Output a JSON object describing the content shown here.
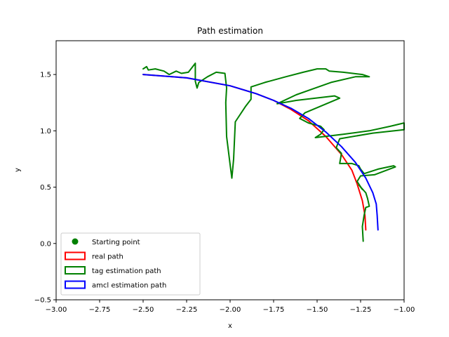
{
  "chart_data": {
    "type": "line",
    "title": "Path estimation",
    "xlabel": "x",
    "ylabel": "y",
    "xlim": [
      -3.0,
      -1.0
    ],
    "ylim": [
      -0.5,
      1.8
    ],
    "xticks": [
      -3.0,
      -2.75,
      -2.5,
      -2.25,
      -2.0,
      -1.75,
      -1.5,
      -1.25,
      -1.0
    ],
    "xtick_labels": [
      "−3.00",
      "−2.75",
      "−2.50",
      "−2.25",
      "−2.00",
      "−1.75",
      "−1.50",
      "−1.25",
      "−1.00"
    ],
    "yticks": [
      -0.5,
      0.0,
      0.5,
      1.0,
      1.5
    ],
    "ytick_labels": [
      "−0.5",
      "0.0",
      "0.5",
      "1.0",
      "1.5"
    ],
    "grid": false,
    "legend_position": "lower-left",
    "series": [
      {
        "name": "Starting point",
        "kind": "marker",
        "color": "#008000",
        "points": []
      },
      {
        "name": "real path",
        "kind": "line",
        "color": "#ff0000",
        "points": [
          [
            -2.5,
            1.5
          ],
          [
            -2.25,
            1.47
          ],
          [
            -2.0,
            1.4
          ],
          [
            -1.85,
            1.33
          ],
          [
            -1.75,
            1.27
          ],
          [
            -1.65,
            1.19
          ],
          [
            -1.55,
            1.09
          ],
          [
            -1.45,
            0.95
          ],
          [
            -1.36,
            0.79
          ],
          [
            -1.3,
            0.65
          ],
          [
            -1.27,
            0.53
          ],
          [
            -1.24,
            0.38
          ],
          [
            -1.225,
            0.25
          ],
          [
            -1.22,
            0.12
          ]
        ]
      },
      {
        "name": "tag estimation path",
        "kind": "line",
        "color": "#008000",
        "points": [
          [
            -2.5,
            1.55
          ],
          [
            -2.48,
            1.57
          ],
          [
            -2.47,
            1.54
          ],
          [
            -2.43,
            1.55
          ],
          [
            -2.38,
            1.53
          ],
          [
            -2.35,
            1.5
          ],
          [
            -2.31,
            1.53
          ],
          [
            -2.28,
            1.51
          ],
          [
            -2.24,
            1.52
          ],
          [
            -2.2,
            1.6
          ],
          [
            -2.2,
            1.44
          ],
          [
            -2.19,
            1.38
          ],
          [
            -2.18,
            1.43
          ],
          [
            -2.13,
            1.48
          ],
          [
            -2.08,
            1.52
          ],
          [
            -2.03,
            1.51
          ],
          [
            -2.02,
            1.38
          ],
          [
            -2.025,
            1.25
          ],
          [
            -2.02,
            0.95
          ],
          [
            -2.0,
            0.7
          ],
          [
            -1.99,
            0.58
          ],
          [
            -1.98,
            0.75
          ],
          [
            -1.97,
            1.08
          ],
          [
            -1.91,
            1.22
          ],
          [
            -1.88,
            1.28
          ],
          [
            -1.88,
            1.39
          ],
          [
            -1.8,
            1.43
          ],
          [
            -1.68,
            1.48
          ],
          [
            -1.58,
            1.52
          ],
          [
            -1.5,
            1.55
          ],
          [
            -1.45,
            1.55
          ],
          [
            -1.43,
            1.53
          ],
          [
            -1.35,
            1.52
          ],
          [
            -1.24,
            1.5
          ],
          [
            -1.2,
            1.48
          ],
          [
            -1.28,
            1.48
          ],
          [
            -1.42,
            1.43
          ],
          [
            -1.62,
            1.32
          ],
          [
            -1.73,
            1.24
          ],
          [
            -1.62,
            1.27
          ],
          [
            -1.4,
            1.31
          ],
          [
            -1.37,
            1.29
          ],
          [
            -1.57,
            1.16
          ],
          [
            -1.6,
            1.11
          ],
          [
            -1.55,
            1.07
          ],
          [
            -1.48,
            1.04
          ],
          [
            -1.46,
            1.01
          ],
          [
            -1.48,
            0.97
          ],
          [
            -1.51,
            0.94
          ],
          [
            -1.35,
            0.97
          ],
          [
            -1.2,
            1.0
          ],
          [
            -1.08,
            1.04
          ],
          [
            -1.0,
            1.07
          ],
          [
            -1.0,
            1.01
          ],
          [
            -1.18,
            0.98
          ],
          [
            -1.37,
            0.93
          ],
          [
            -1.39,
            0.85
          ],
          [
            -1.36,
            0.8
          ],
          [
            -1.37,
            0.71
          ],
          [
            -1.3,
            0.71
          ],
          [
            -1.26,
            0.69
          ],
          [
            -1.25,
            0.66
          ],
          [
            -1.23,
            0.62
          ],
          [
            -1.15,
            0.66
          ],
          [
            -1.06,
            0.69
          ],
          [
            -1.05,
            0.68
          ],
          [
            -1.17,
            0.61
          ],
          [
            -1.25,
            0.6
          ],
          [
            -1.27,
            0.55
          ],
          [
            -1.24,
            0.48
          ],
          [
            -1.26,
            0.52
          ],
          [
            -1.22,
            0.45
          ],
          [
            -1.21,
            0.4
          ],
          [
            -1.2,
            0.33
          ],
          [
            -1.22,
            0.32
          ],
          [
            -1.23,
            0.25
          ],
          [
            -1.24,
            0.15
          ],
          [
            -1.235,
            0.02
          ]
        ]
      },
      {
        "name": "amcl estimation path",
        "kind": "line",
        "color": "#0000ff",
        "points": [
          [
            -2.5,
            1.5
          ],
          [
            -2.25,
            1.47
          ],
          [
            -2.0,
            1.4
          ],
          [
            -1.85,
            1.33
          ],
          [
            -1.75,
            1.27
          ],
          [
            -1.65,
            1.2
          ],
          [
            -1.55,
            1.11
          ],
          [
            -1.45,
            0.99
          ],
          [
            -1.36,
            0.86
          ],
          [
            -1.28,
            0.72
          ],
          [
            -1.22,
            0.58
          ],
          [
            -1.18,
            0.45
          ],
          [
            -1.16,
            0.35
          ],
          [
            -1.155,
            0.25
          ],
          [
            -1.15,
            0.12
          ]
        ]
      }
    ]
  }
}
